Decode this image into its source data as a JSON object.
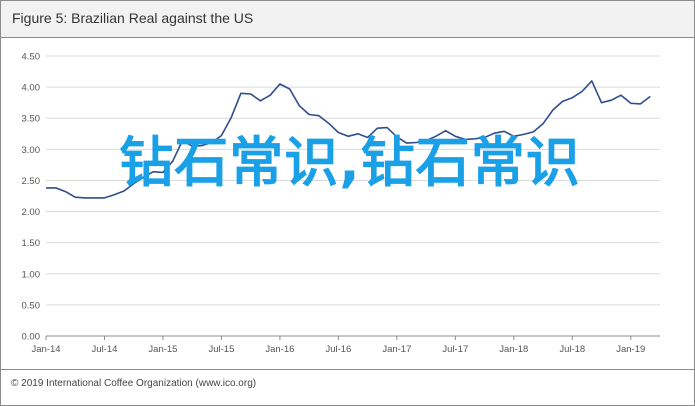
{
  "figure": {
    "title": "Figure 5: Brazilian Real against the US",
    "footer": "© 2019 International Coffee Organization (www.ico.org)"
  },
  "watermark_text": "钻石常识,钻石常识",
  "colors": {
    "line": "#2f4e8c",
    "watermark": "#1aa0e6",
    "frame": "#8c8c8c"
  },
  "chart_data": {
    "type": "line",
    "title": "Brazilian Real against the US",
    "xlabel": "",
    "ylabel": "",
    "ylim": [
      0,
      4.5
    ],
    "y_ticks": [
      "0.00",
      "0.50",
      "1.00",
      "1.50",
      "2.00",
      "2.50",
      "3.00",
      "3.50",
      "4.00",
      "4.50"
    ],
    "x_ticks": [
      "Jan-14",
      "Jul-14",
      "Jan-15",
      "Jul-15",
      "Jan-16",
      "Jul-16",
      "Jan-17",
      "Jul-17",
      "Jan-18",
      "Jul-18",
      "Jan-19"
    ],
    "grid": "horizontal",
    "series": [
      {
        "name": "",
        "x": [
          "Jan-14",
          "Feb-14",
          "Mar-14",
          "Apr-14",
          "May-14",
          "Jun-14",
          "Jul-14",
          "Aug-14",
          "Sep-14",
          "Oct-14",
          "Nov-14",
          "Dec-14",
          "Jan-15",
          "Feb-15",
          "Mar-15",
          "Apr-15",
          "May-15",
          "Jun-15",
          "Jul-15",
          "Aug-15",
          "Sep-15",
          "Oct-15",
          "Nov-15",
          "Dec-15",
          "Jan-16",
          "Feb-16",
          "Mar-16",
          "Apr-16",
          "May-16",
          "Jun-16",
          "Jul-16",
          "Aug-16",
          "Sep-16",
          "Oct-16",
          "Nov-16",
          "Dec-16",
          "Jan-17",
          "Feb-17",
          "Mar-17",
          "Apr-17",
          "May-17",
          "Jun-17",
          "Jul-17",
          "Aug-17",
          "Sep-17",
          "Oct-17",
          "Nov-17",
          "Dec-17",
          "Jan-18",
          "Feb-18",
          "Mar-18",
          "Apr-18",
          "May-18",
          "Jun-18",
          "Jul-18",
          "Aug-18",
          "Sep-18",
          "Oct-18",
          "Nov-18",
          "Dec-18",
          "Jan-19",
          "Feb-19",
          "Mar-19"
        ],
        "values": [
          2.38,
          2.38,
          2.32,
          2.23,
          2.22,
          2.22,
          2.22,
          2.27,
          2.33,
          2.45,
          2.55,
          2.64,
          2.63,
          2.81,
          3.14,
          3.05,
          3.06,
          3.11,
          3.22,
          3.51,
          3.9,
          3.89,
          3.78,
          3.87,
          4.05,
          3.97,
          3.7,
          3.56,
          3.54,
          3.42,
          3.27,
          3.21,
          3.25,
          3.19,
          3.34,
          3.35,
          3.2,
          3.1,
          3.11,
          3.14,
          3.21,
          3.3,
          3.21,
          3.16,
          3.17,
          3.19,
          3.26,
          3.29,
          3.21,
          3.24,
          3.28,
          3.41,
          3.63,
          3.77,
          3.83,
          3.93,
          4.1,
          3.75,
          3.79,
          3.87,
          3.74,
          3.73,
          3.85
        ]
      }
    ]
  }
}
